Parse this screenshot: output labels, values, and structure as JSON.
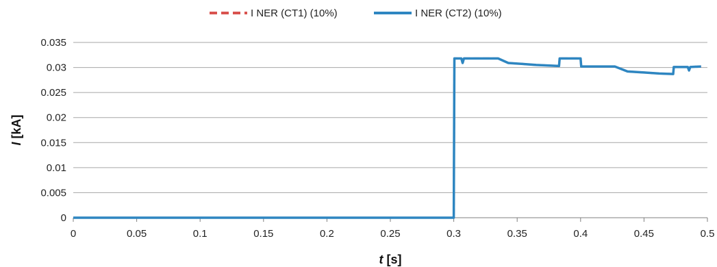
{
  "chart_data": {
    "type": "line",
    "title": "",
    "xlabel": {
      "symbol": "t",
      "unit": "[s]"
    },
    "ylabel": {
      "symbol": "I",
      "unit": "[kA]"
    },
    "xlim": [
      0,
      0.5
    ],
    "ylim": [
      0,
      0.035
    ],
    "x_ticks": [
      "0",
      "0.05",
      "0.1",
      "0.15",
      "0.2",
      "0.25",
      "0.3",
      "0.35",
      "0.4",
      "0.45",
      "0.5"
    ],
    "y_ticks": [
      "0",
      "0.005",
      "0.01",
      "0.015",
      "0.02",
      "0.025",
      "0.03",
      "0.035"
    ],
    "grid": "horizontal",
    "legend_position": "top",
    "series": [
      {
        "name": "I NER (CT1) (10%)",
        "color": "#d9534f",
        "style": "dashed",
        "points": [
          [
            0,
            0
          ],
          [
            0.3,
            0
          ],
          [
            0.3005,
            0.0318
          ],
          [
            0.306,
            0.0318
          ],
          [
            0.307,
            0.0309
          ],
          [
            0.308,
            0.0318
          ],
          [
            0.335,
            0.0318
          ],
          [
            0.343,
            0.0309
          ],
          [
            0.355,
            0.0307
          ],
          [
            0.365,
            0.0305
          ],
          [
            0.383,
            0.0303
          ],
          [
            0.3835,
            0.0318
          ],
          [
            0.4,
            0.0318
          ],
          [
            0.4005,
            0.0302
          ],
          [
            0.427,
            0.0302
          ],
          [
            0.437,
            0.0292
          ],
          [
            0.45,
            0.029
          ],
          [
            0.462,
            0.0288
          ],
          [
            0.473,
            0.0287
          ],
          [
            0.4735,
            0.0301
          ],
          [
            0.4845,
            0.0301
          ],
          [
            0.4855,
            0.0294
          ],
          [
            0.4865,
            0.0301
          ],
          [
            0.495,
            0.0302
          ]
        ]
      },
      {
        "name": "I NER (CT2) (10%)",
        "color": "#2e86c1",
        "style": "solid",
        "points": [
          [
            0,
            0
          ],
          [
            0.3,
            0
          ],
          [
            0.3005,
            0.0318
          ],
          [
            0.306,
            0.0318
          ],
          [
            0.307,
            0.0309
          ],
          [
            0.308,
            0.0318
          ],
          [
            0.335,
            0.0318
          ],
          [
            0.343,
            0.0309
          ],
          [
            0.355,
            0.0307
          ],
          [
            0.365,
            0.0305
          ],
          [
            0.383,
            0.0303
          ],
          [
            0.3835,
            0.0318
          ],
          [
            0.4,
            0.0318
          ],
          [
            0.4005,
            0.0302
          ],
          [
            0.427,
            0.0302
          ],
          [
            0.437,
            0.0292
          ],
          [
            0.45,
            0.029
          ],
          [
            0.462,
            0.0288
          ],
          [
            0.473,
            0.0287
          ],
          [
            0.4735,
            0.0301
          ],
          [
            0.4845,
            0.0301
          ],
          [
            0.4855,
            0.0294
          ],
          [
            0.4865,
            0.0301
          ],
          [
            0.495,
            0.0302
          ]
        ]
      }
    ]
  }
}
